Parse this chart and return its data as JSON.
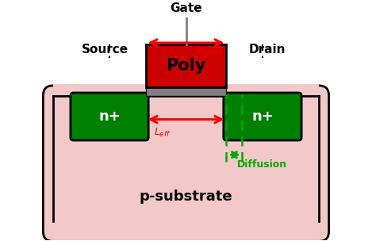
{
  "fig_width": 4.69,
  "fig_height": 3.04,
  "dpi": 100,
  "bg_color": "#FFFFFF",
  "substrate_color": "#F2C8C8",
  "substrate_border": "#000000",
  "nplus_color": "#008000",
  "nplus_border": "#000000",
  "poly_color": "#CC0000",
  "poly_border": "#000000",
  "gate_oxide_color": "#808080",
  "gate_oxide_border": "#000000",
  "arrow_color_red": "#FF0000",
  "arrow_color_green": "#00AA00",
  "dashed_color_black": "#000000",
  "dashed_color_green": "#00AA00",
  "label_source": "Source",
  "label_drain": "Drain",
  "label_gate": "Gate",
  "label_poly": "Poly",
  "label_nplus": "n+",
  "label_substrate": "p-substrate",
  "label_diffusion": "Diffusion",
  "xlim": [
    0,
    10
  ],
  "ylim": [
    0,
    8
  ]
}
